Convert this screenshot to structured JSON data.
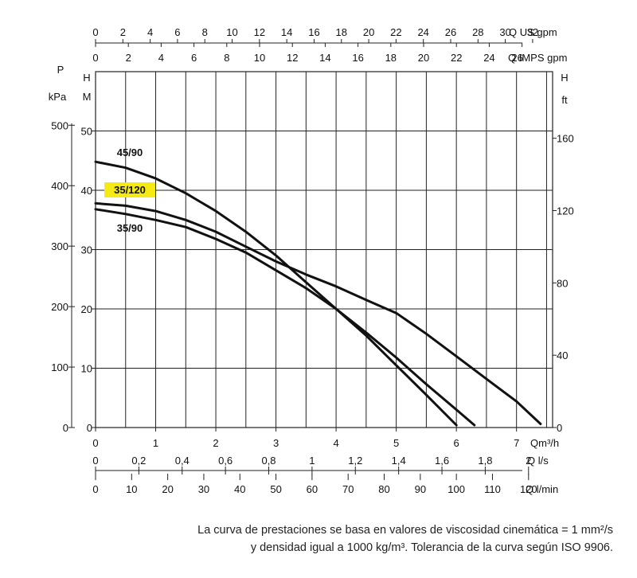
{
  "chart_data": {
    "type": "line",
    "title": "",
    "x_axes": {
      "qm3h": {
        "unit": "Qm³/h",
        "ticks": [
          0,
          1,
          2,
          3,
          4,
          5,
          6,
          7
        ]
      },
      "qls": {
        "unit": "Q l/s",
        "ticks": [
          "0",
          "0,2",
          "0,4",
          "0,6",
          "0,8",
          "1",
          "1,2",
          "1,4",
          "1,6",
          "1,8",
          "2"
        ],
        "tick_values": [
          0,
          0.2,
          0.4,
          0.6,
          0.8,
          1,
          1.2,
          1.4,
          1.6,
          1.8,
          2
        ]
      },
      "qlmin": {
        "unit": "Q l/min",
        "ticks": [
          0,
          10,
          20,
          30,
          40,
          50,
          60,
          70,
          80,
          90,
          100,
          110,
          120
        ]
      },
      "qusgpm": {
        "unit": "Q US gpm",
        "ticks": [
          0,
          2,
          4,
          6,
          8,
          10,
          12,
          14,
          16,
          18,
          20,
          22,
          24,
          26,
          28,
          30,
          32
        ]
      },
      "qimps": {
        "unit": "Q IMPS gpm",
        "ticks": [
          0,
          2,
          4,
          6,
          8,
          10,
          12,
          14,
          16,
          18,
          20,
          22,
          24,
          26
        ]
      }
    },
    "y_axes": {
      "h_m": {
        "header": "H",
        "unit": "M",
        "ticks": [
          0,
          10,
          20,
          30,
          40,
          50
        ]
      },
      "p_kpa": {
        "header": "P",
        "unit": "kPa",
        "ticks": [
          0,
          100,
          200,
          300,
          400,
          500
        ]
      },
      "h_ft": {
        "header": "H",
        "unit": "ft",
        "ticks": [
          0,
          40,
          80,
          120,
          160
        ]
      }
    },
    "xlim": [
      0,
      7.6
    ],
    "ylim": [
      0,
      60
    ],
    "grid": true,
    "series": [
      {
        "name": "45/90",
        "highlight": false,
        "x": [
          0,
          0.5,
          1,
          1.5,
          2,
          2.5,
          3,
          3.5,
          4,
          4.5,
          5,
          5.5,
          6
        ],
        "y": [
          44.8,
          43.8,
          42.0,
          39.5,
          36.5,
          33.0,
          29.0,
          24.5,
          20.0,
          15.5,
          10.5,
          5.5,
          0.4
        ]
      },
      {
        "name": "35/120",
        "highlight": true,
        "x": [
          0,
          0.5,
          1,
          1.5,
          2,
          2.5,
          3,
          3.5,
          4,
          4.5,
          5,
          5.5,
          6,
          6.5,
          7,
          7.4
        ],
        "y": [
          37.8,
          37.4,
          36.5,
          35.0,
          33.0,
          30.5,
          28.0,
          25.8,
          23.8,
          21.5,
          19.3,
          15.8,
          12.0,
          8.2,
          4.4,
          0.6
        ]
      },
      {
        "name": "35/90",
        "highlight": false,
        "x": [
          0,
          0.5,
          1,
          1.5,
          2,
          2.5,
          3,
          3.5,
          4,
          4.5,
          5,
          5.5,
          6,
          6.3
        ],
        "y": [
          36.8,
          36.0,
          35.0,
          33.8,
          31.8,
          29.5,
          26.5,
          23.5,
          20.0,
          16.0,
          11.8,
          7.3,
          3.0,
          0.4
        ]
      }
    ],
    "highlight_color": "#f5ea14",
    "line_color": "#111111"
  },
  "footnote": {
    "line1": "La curva de prestaciones se basa en valores de viscosidad cinemática = 1 mm²/s",
    "line2": "y densidad igual a 1000 kg/m³. Tolerancia de la curva según ISO 9906."
  }
}
